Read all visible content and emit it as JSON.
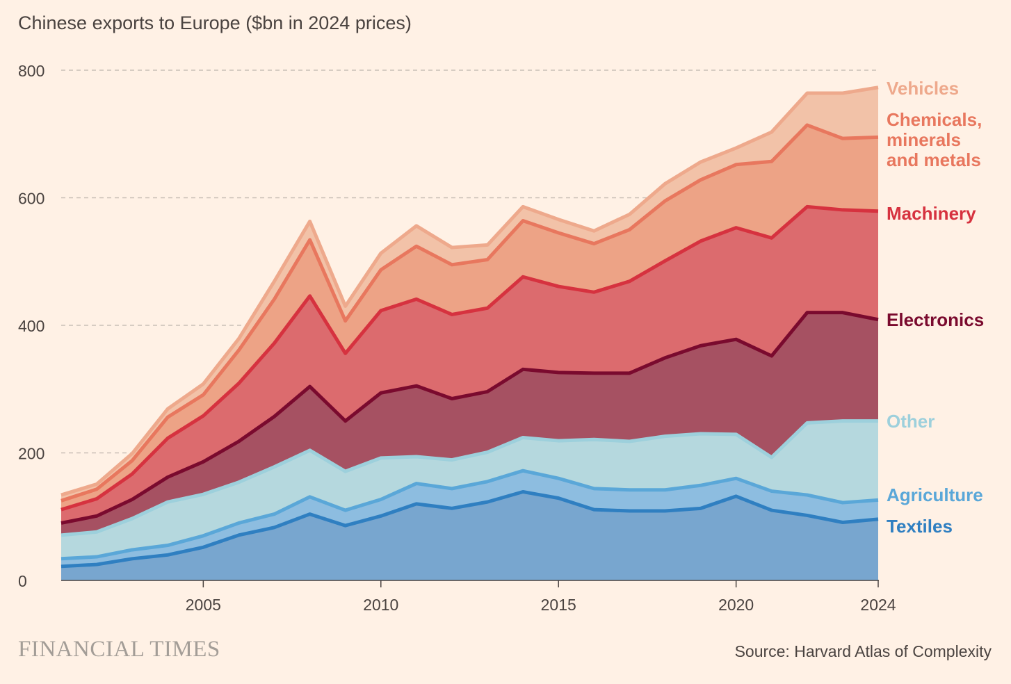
{
  "chart_data": {
    "type": "area",
    "stacked": true,
    "title": "Chinese exports to Europe ($bn in 2024 prices)",
    "xlabel": "",
    "ylabel": "",
    "ylim": [
      0,
      800
    ],
    "yticks": [
      "0",
      "200",
      "400",
      "600",
      "800"
    ],
    "xticks": [
      "2005",
      "2010",
      "2015",
      "2020",
      "2024"
    ],
    "grid": true,
    "legend": "right-inline",
    "x": [
      2001,
      2002,
      2003,
      2004,
      2005,
      2006,
      2007,
      2008,
      2009,
      2010,
      2011,
      2012,
      2013,
      2014,
      2015,
      2016,
      2017,
      2018,
      2019,
      2020,
      2021,
      2022,
      2023,
      2024
    ],
    "series": [
      {
        "name": "Textiles",
        "fill": "#78a6cf",
        "line": "#2f7fc1",
        "label_color": "#2f7fc1",
        "values": [
          22,
          25,
          34,
          40,
          52,
          71,
          83,
          104,
          86,
          101,
          120,
          113,
          123,
          139,
          129,
          111,
          109,
          109,
          113,
          132,
          110,
          102,
          91,
          96
        ]
      },
      {
        "name": "Agriculture",
        "fill": "#8dbde0",
        "line": "#5aa7d8",
        "label_color": "#5aa7d8",
        "values": [
          12,
          12,
          14,
          15,
          18,
          19,
          21,
          27,
          24,
          26,
          32,
          31,
          32,
          33,
          31,
          33,
          33,
          33,
          36,
          28,
          30,
          32,
          31,
          30
        ]
      },
      {
        "name": "Other",
        "fill": "#b5d8de",
        "line": "#9dd0dc",
        "label_color": "#9dd0dc",
        "values": [
          37,
          39,
          49,
          68,
          65,
          64,
          74,
          73,
          61,
          65,
          42,
          45,
          46,
          52,
          59,
          77,
          76,
          84,
          81,
          69,
          53,
          113,
          128,
          124
        ]
      },
      {
        "name": "Electronics",
        "fill": "#a65162",
        "line": "#7a0a2e",
        "label_color": "#7a0a2e",
        "values": [
          19,
          25,
          30,
          39,
          51,
          64,
          79,
          100,
          79,
          102,
          111,
          96,
          95,
          107,
          107,
          104,
          107,
          123,
          138,
          149,
          159,
          173,
          170,
          159
        ]
      },
      {
        "name": "Machinery",
        "fill": "#dc6b6e",
        "line": "#d6323f",
        "label_color": "#d6323f",
        "values": [
          21,
          27,
          40,
          61,
          72,
          91,
          115,
          142,
          106,
          129,
          136,
          132,
          131,
          145,
          135,
          127,
          144,
          152,
          164,
          175,
          185,
          166,
          161,
          170
        ]
      },
      {
        "name": "Chemicals, minerals and metals",
        "label_lines": [
          "Chemicals,",
          "minerals",
          "and metals"
        ],
        "fill": "#eda386",
        "line": "#e8775e",
        "label_color": "#e8775e",
        "values": [
          14,
          15,
          21,
          33,
          33,
          52,
          69,
          88,
          51,
          64,
          83,
          78,
          76,
          88,
          84,
          76,
          81,
          94,
          96,
          99,
          120,
          128,
          112,
          116
        ]
      },
      {
        "name": "Vehicles",
        "fill": "#f2c2a8",
        "line": "#eea98c",
        "label_color": "#eea98c",
        "values": [
          9,
          8,
          11,
          13,
          17,
          18,
          28,
          29,
          23,
          26,
          32,
          27,
          23,
          22,
          21,
          20,
          24,
          27,
          28,
          26,
          46,
          50,
          71,
          78
        ]
      }
    ]
  },
  "branding": "FINANCIAL TIMES",
  "source": "Source: Harvard Atlas of Complexity"
}
